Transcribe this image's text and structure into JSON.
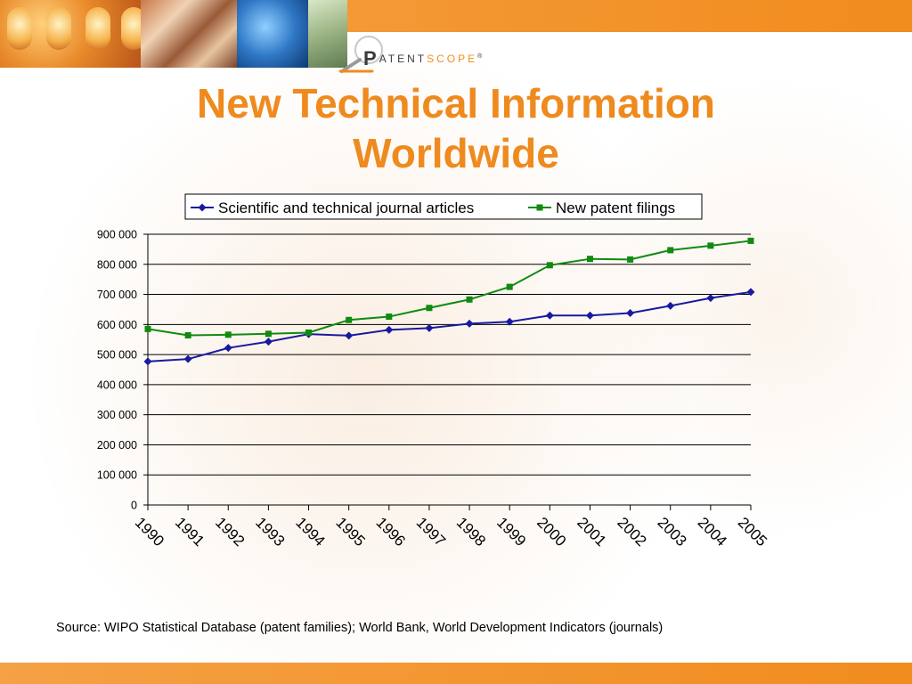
{
  "slide": {
    "title": "New Technical Information Worldwide",
    "source": "Source: WIPO Statistical Database (patent families); World Bank, World Development Indicators (journals)"
  },
  "logo": {
    "letter": "P",
    "text_main": "ATENT",
    "text_accent": "SCOPE",
    "mark": "®"
  },
  "colors": {
    "accent": "#ee8a1e",
    "series_journals": "#1a1aa0",
    "series_patents": "#108a10",
    "grid": "#000000"
  },
  "chart_data": {
    "type": "line",
    "title": "",
    "xlabel": "",
    "ylabel": "",
    "x": [
      "1990",
      "1991",
      "1992",
      "1993",
      "1994",
      "1995",
      "1996",
      "1997",
      "1998",
      "1999",
      "2000",
      "2001",
      "2002",
      "2003",
      "2004",
      "2005"
    ],
    "ylim": [
      0,
      900000
    ],
    "yticks": [
      {
        "value": 0,
        "label": "0"
      },
      {
        "value": 100000,
        "label": "100 000"
      },
      {
        "value": 200000,
        "label": "200 000"
      },
      {
        "value": 300000,
        "label": "300 000"
      },
      {
        "value": 400000,
        "label": "400 000"
      },
      {
        "value": 500000,
        "label": "500 000"
      },
      {
        "value": 600000,
        "label": "600 000"
      },
      {
        "value": 700000,
        "label": "700 000"
      },
      {
        "value": 800000,
        "label": "800 000"
      },
      {
        "value": 900000,
        "label": "900 000"
      }
    ],
    "grid": true,
    "legend_position": "top",
    "series": [
      {
        "name": "Scientific and technical journal articles",
        "marker": "diamond",
        "color": "#1a1aa0",
        "values": [
          477000,
          485000,
          522000,
          543000,
          568000,
          563000,
          582000,
          588000,
          603000,
          609000,
          630000,
          630000,
          638000,
          662000,
          688000,
          708000
        ]
      },
      {
        "name": "New patent filings",
        "marker": "square",
        "color": "#108a10",
        "values": [
          585000,
          564000,
          566000,
          569000,
          573000,
          615000,
          626000,
          655000,
          683000,
          725000,
          797000,
          818000,
          816000,
          847000,
          862000,
          878000
        ]
      }
    ]
  }
}
